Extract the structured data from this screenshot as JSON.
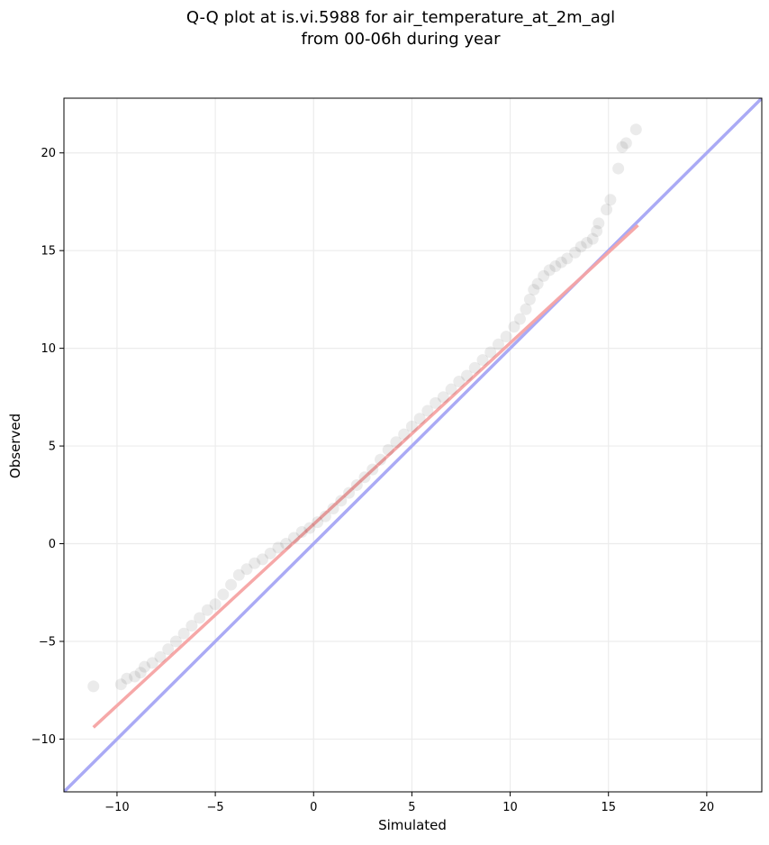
{
  "chart_data": {
    "type": "scatter",
    "title_line1": "Q-Q plot at is.vi.5988 for air_temperature_at_2m_agl",
    "title_line2": "from 00-06h during year",
    "xlabel": "Simulated",
    "ylabel": "Observed",
    "xlim": [
      -12.7,
      22.8
    ],
    "ylim": [
      -12.7,
      22.8
    ],
    "xticks": [
      -10,
      -5,
      0,
      5,
      10,
      15,
      20
    ],
    "yticks": [
      -10,
      -5,
      0,
      5,
      10,
      15,
      20
    ],
    "xtick_labels": [
      "−10",
      "−5",
      "0",
      "5",
      "10",
      "15",
      "20"
    ],
    "ytick_labels": [
      "−10",
      "−5",
      "0",
      "5",
      "10",
      "15",
      "20"
    ],
    "grid": true,
    "points": [
      [
        -11.2,
        -7.3
      ],
      [
        -9.8,
        -7.2
      ],
      [
        -9.5,
        -6.9
      ],
      [
        -9.1,
        -6.8
      ],
      [
        -8.8,
        -6.6
      ],
      [
        -8.6,
        -6.3
      ],
      [
        -8.2,
        -6.1
      ],
      [
        -7.8,
        -5.8
      ],
      [
        -7.4,
        -5.4
      ],
      [
        -7.0,
        -5.0
      ],
      [
        -6.6,
        -4.6
      ],
      [
        -6.2,
        -4.2
      ],
      [
        -5.8,
        -3.8
      ],
      [
        -5.4,
        -3.4
      ],
      [
        -5.0,
        -3.1
      ],
      [
        -4.6,
        -2.6
      ],
      [
        -4.2,
        -2.1
      ],
      [
        -3.8,
        -1.6
      ],
      [
        -3.4,
        -1.3
      ],
      [
        -3.0,
        -1.0
      ],
      [
        -2.6,
        -0.8
      ],
      [
        -2.2,
        -0.5
      ],
      [
        -1.8,
        -0.2
      ],
      [
        -1.4,
        0.0
      ],
      [
        -1.0,
        0.3
      ],
      [
        -0.6,
        0.6
      ],
      [
        -0.2,
        0.8
      ],
      [
        0.2,
        1.1
      ],
      [
        0.6,
        1.4
      ],
      [
        1.0,
        1.8
      ],
      [
        1.4,
        2.2
      ],
      [
        1.8,
        2.6
      ],
      [
        2.2,
        3.0
      ],
      [
        2.6,
        3.4
      ],
      [
        3.0,
        3.8
      ],
      [
        3.4,
        4.3
      ],
      [
        3.8,
        4.8
      ],
      [
        4.2,
        5.2
      ],
      [
        4.6,
        5.6
      ],
      [
        5.0,
        6.0
      ],
      [
        5.4,
        6.4
      ],
      [
        5.8,
        6.8
      ],
      [
        6.2,
        7.2
      ],
      [
        6.6,
        7.5
      ],
      [
        7.0,
        7.9
      ],
      [
        7.4,
        8.3
      ],
      [
        7.8,
        8.6
      ],
      [
        8.2,
        9.0
      ],
      [
        8.6,
        9.4
      ],
      [
        9.0,
        9.8
      ],
      [
        9.4,
        10.2
      ],
      [
        9.8,
        10.6
      ],
      [
        10.2,
        11.1
      ],
      [
        10.5,
        11.5
      ],
      [
        10.8,
        12.0
      ],
      [
        11.0,
        12.5
      ],
      [
        11.2,
        13.0
      ],
      [
        11.4,
        13.3
      ],
      [
        11.7,
        13.7
      ],
      [
        12.0,
        14.0
      ],
      [
        12.3,
        14.2
      ],
      [
        12.6,
        14.4
      ],
      [
        12.9,
        14.6
      ],
      [
        13.3,
        14.9
      ],
      [
        13.6,
        15.2
      ],
      [
        13.9,
        15.4
      ],
      [
        14.2,
        15.6
      ],
      [
        14.4,
        16.0
      ],
      [
        14.5,
        16.4
      ],
      [
        14.9,
        17.1
      ],
      [
        15.1,
        17.6
      ],
      [
        15.5,
        19.2
      ],
      [
        15.7,
        20.3
      ],
      [
        15.9,
        20.5
      ],
      [
        16.4,
        21.2
      ]
    ],
    "reference_line": {
      "x": [
        -12.7,
        22.8
      ],
      "y": [
        -12.7,
        22.8
      ],
      "color": "#aaaaf5"
    },
    "fit_line": {
      "x": [
        -11.2,
        16.5
      ],
      "y": [
        -9.4,
        16.3
      ],
      "color": "#f5a3a3"
    },
    "point_color": "#000000"
  }
}
